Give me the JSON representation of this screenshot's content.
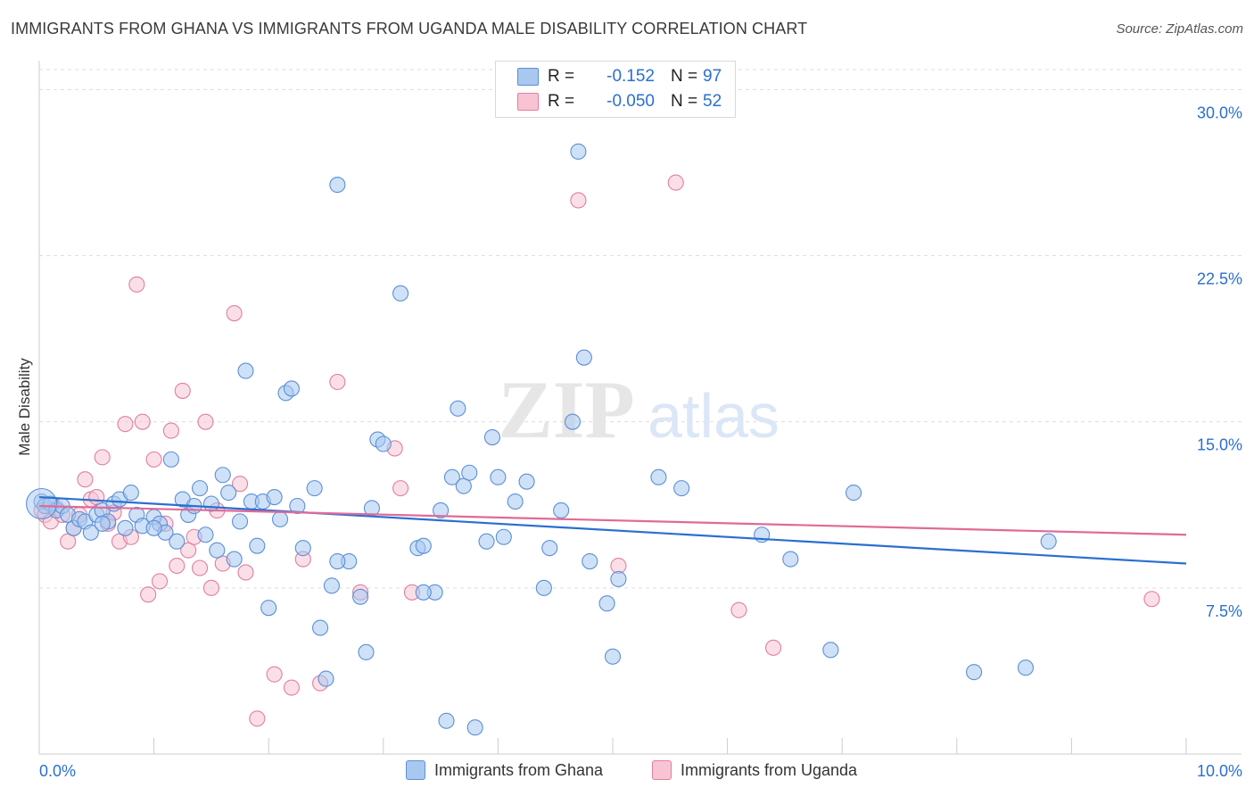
{
  "title": "IMMIGRANTS FROM GHANA VS IMMIGRANTS FROM UGANDA MALE DISABILITY CORRELATION CHART",
  "source": "Source: ZipAtlas.com",
  "watermark": {
    "zip": "ZIP",
    "atlas": "atlas"
  },
  "legend": {
    "rows": [
      {
        "r_label": "R =",
        "r_value": "-0.152",
        "n_label": "N =",
        "n_value": "97",
        "color": "#a8c8f0",
        "border": "#5b8fd6"
      },
      {
        "r_label": "R =",
        "r_value": "-0.050",
        "n_label": "N =",
        "n_value": "52",
        "color": "#f8c4d4",
        "border": "#e07ea0"
      }
    ]
  },
  "bottom_legend": [
    {
      "label": "Immigrants from Ghana",
      "color": "#a8c8f0",
      "border": "#5b8fd6"
    },
    {
      "label": "Immigrants from Uganda",
      "color": "#f8c4d4",
      "border": "#e07ea0"
    }
  ],
  "chart_data": {
    "type": "scatter",
    "title": "IMMIGRANTS FROM GHANA VS IMMIGRANTS FROM UGANDA MALE DISABILITY CORRELATION CHART",
    "xlabel": "",
    "ylabel": "Male Disability",
    "xlim": [
      0,
      10
    ],
    "ylim": [
      0,
      30.9
    ],
    "x_tick_labels": [
      "0.0%",
      "10.0%"
    ],
    "y_ticks": [
      7.5,
      15.0,
      22.5,
      30.0
    ],
    "y_tick_labels": [
      "7.5%",
      "15.0%",
      "22.5%",
      "30.0%"
    ],
    "grid": "horizontal dashed",
    "legend_position": "top-center",
    "series": [
      {
        "name": "Immigrants from Ghana",
        "color": "#5b8fd6",
        "fill": "#a8c8f0",
        "trend": {
          "x": [
            0,
            10
          ],
          "y": [
            11.6,
            8.6
          ],
          "color": "#2a6fd1"
        },
        "points": [
          [
            0.02,
            11.4
          ],
          [
            0.05,
            11.2
          ],
          [
            0.1,
            11.3
          ],
          [
            0.15,
            11.0
          ],
          [
            0.2,
            11.2
          ],
          [
            0.25,
            10.8
          ],
          [
            0.3,
            10.2
          ],
          [
            0.35,
            10.6
          ],
          [
            0.4,
            10.5
          ],
          [
            0.45,
            10.0
          ],
          [
            0.5,
            10.8
          ],
          [
            0.55,
            11.0
          ],
          [
            0.6,
            10.5
          ],
          [
            0.65,
            11.3
          ],
          [
            0.7,
            11.5
          ],
          [
            0.75,
            10.2
          ],
          [
            0.8,
            11.8
          ],
          [
            0.85,
            10.8
          ],
          [
            0.9,
            10.3
          ],
          [
            1.0,
            10.7
          ],
          [
            1.05,
            10.4
          ],
          [
            1.1,
            10.0
          ],
          [
            1.15,
            13.3
          ],
          [
            1.2,
            9.6
          ],
          [
            1.25,
            11.5
          ],
          [
            1.3,
            10.8
          ],
          [
            1.35,
            11.2
          ],
          [
            1.4,
            12.0
          ],
          [
            1.45,
            9.9
          ],
          [
            1.5,
            11.3
          ],
          [
            1.55,
            9.2
          ],
          [
            1.6,
            12.6
          ],
          [
            1.65,
            11.8
          ],
          [
            1.7,
            8.8
          ],
          [
            1.75,
            10.5
          ],
          [
            1.8,
            17.3
          ],
          [
            1.85,
            11.4
          ],
          [
            1.9,
            9.4
          ],
          [
            1.95,
            11.4
          ],
          [
            2.0,
            6.6
          ],
          [
            2.05,
            11.6
          ],
          [
            2.1,
            10.6
          ],
          [
            2.15,
            16.3
          ],
          [
            2.2,
            16.5
          ],
          [
            2.25,
            11.2
          ],
          [
            2.3,
            9.3
          ],
          [
            2.4,
            12.0
          ],
          [
            2.45,
            5.7
          ],
          [
            2.5,
            3.4
          ],
          [
            2.55,
            7.6
          ],
          [
            2.6,
            25.7
          ],
          [
            2.7,
            8.7
          ],
          [
            2.8,
            7.1
          ],
          [
            2.85,
            4.6
          ],
          [
            2.9,
            11.1
          ],
          [
            2.95,
            14.2
          ],
          [
            3.0,
            14.0
          ],
          [
            3.15,
            20.8
          ],
          [
            3.3,
            9.3
          ],
          [
            3.35,
            9.4
          ],
          [
            3.45,
            7.3
          ],
          [
            3.5,
            11.0
          ],
          [
            3.55,
            1.5
          ],
          [
            3.6,
            12.5
          ],
          [
            3.65,
            15.6
          ],
          [
            3.7,
            12.1
          ],
          [
            3.75,
            12.7
          ],
          [
            3.8,
            1.2
          ],
          [
            3.9,
            9.6
          ],
          [
            3.95,
            14.3
          ],
          [
            4.0,
            12.5
          ],
          [
            4.05,
            9.8
          ],
          [
            4.15,
            11.4
          ],
          [
            4.25,
            12.3
          ],
          [
            4.4,
            7.5
          ],
          [
            4.45,
            9.3
          ],
          [
            4.55,
            11.0
          ],
          [
            4.65,
            15.0
          ],
          [
            4.7,
            27.2
          ],
          [
            4.75,
            17.9
          ],
          [
            4.8,
            8.7
          ],
          [
            4.95,
            6.8
          ],
          [
            5.0,
            4.4
          ],
          [
            5.05,
            7.9
          ],
          [
            5.4,
            12.5
          ],
          [
            5.6,
            12.0
          ],
          [
            6.3,
            9.9
          ],
          [
            6.55,
            8.8
          ],
          [
            6.9,
            4.7
          ],
          [
            7.1,
            11.8
          ],
          [
            8.15,
            3.7
          ],
          [
            8.6,
            3.9
          ],
          [
            8.8,
            9.6
          ],
          [
            0.55,
            10.4
          ],
          [
            1.0,
            10.2
          ],
          [
            2.6,
            8.7
          ],
          [
            3.35,
            7.3
          ]
        ]
      },
      {
        "name": "Immigrants from Uganda",
        "color": "#e07ea0",
        "fill": "#f8c4d4",
        "trend": {
          "x": [
            0,
            10
          ],
          "y": [
            11.2,
            9.9
          ],
          "color": "#e06a98"
        },
        "points": [
          [
            0.02,
            11.0
          ],
          [
            0.05,
            10.8
          ],
          [
            0.1,
            10.5
          ],
          [
            0.15,
            11.1
          ],
          [
            0.2,
            10.8
          ],
          [
            0.25,
            9.6
          ],
          [
            0.3,
            10.2
          ],
          [
            0.35,
            10.8
          ],
          [
            0.4,
            12.4
          ],
          [
            0.45,
            11.5
          ],
          [
            0.5,
            11.6
          ],
          [
            0.55,
            13.4
          ],
          [
            0.6,
            10.4
          ],
          [
            0.65,
            10.9
          ],
          [
            0.7,
            9.6
          ],
          [
            0.75,
            14.9
          ],
          [
            0.8,
            9.8
          ],
          [
            0.85,
            21.2
          ],
          [
            0.9,
            15.0
          ],
          [
            0.95,
            7.2
          ],
          [
            1.0,
            13.3
          ],
          [
            1.05,
            7.8
          ],
          [
            1.1,
            10.4
          ],
          [
            1.15,
            14.6
          ],
          [
            1.2,
            8.5
          ],
          [
            1.25,
            16.4
          ],
          [
            1.3,
            9.2
          ],
          [
            1.35,
            9.8
          ],
          [
            1.4,
            8.4
          ],
          [
            1.45,
            15.0
          ],
          [
            1.5,
            7.5
          ],
          [
            1.55,
            11.0
          ],
          [
            1.6,
            8.6
          ],
          [
            1.7,
            19.9
          ],
          [
            1.75,
            12.2
          ],
          [
            1.8,
            8.2
          ],
          [
            1.9,
            1.6
          ],
          [
            2.05,
            3.6
          ],
          [
            2.2,
            3.0
          ],
          [
            2.3,
            8.8
          ],
          [
            2.45,
            3.2
          ],
          [
            2.6,
            16.8
          ],
          [
            2.8,
            7.3
          ],
          [
            3.1,
            13.8
          ],
          [
            3.15,
            12.0
          ],
          [
            3.25,
            7.3
          ],
          [
            4.7,
            25.0
          ],
          [
            5.05,
            8.5
          ],
          [
            5.55,
            25.8
          ],
          [
            6.1,
            6.5
          ],
          [
            6.4,
            4.8
          ],
          [
            9.7,
            7.0
          ]
        ]
      }
    ]
  }
}
